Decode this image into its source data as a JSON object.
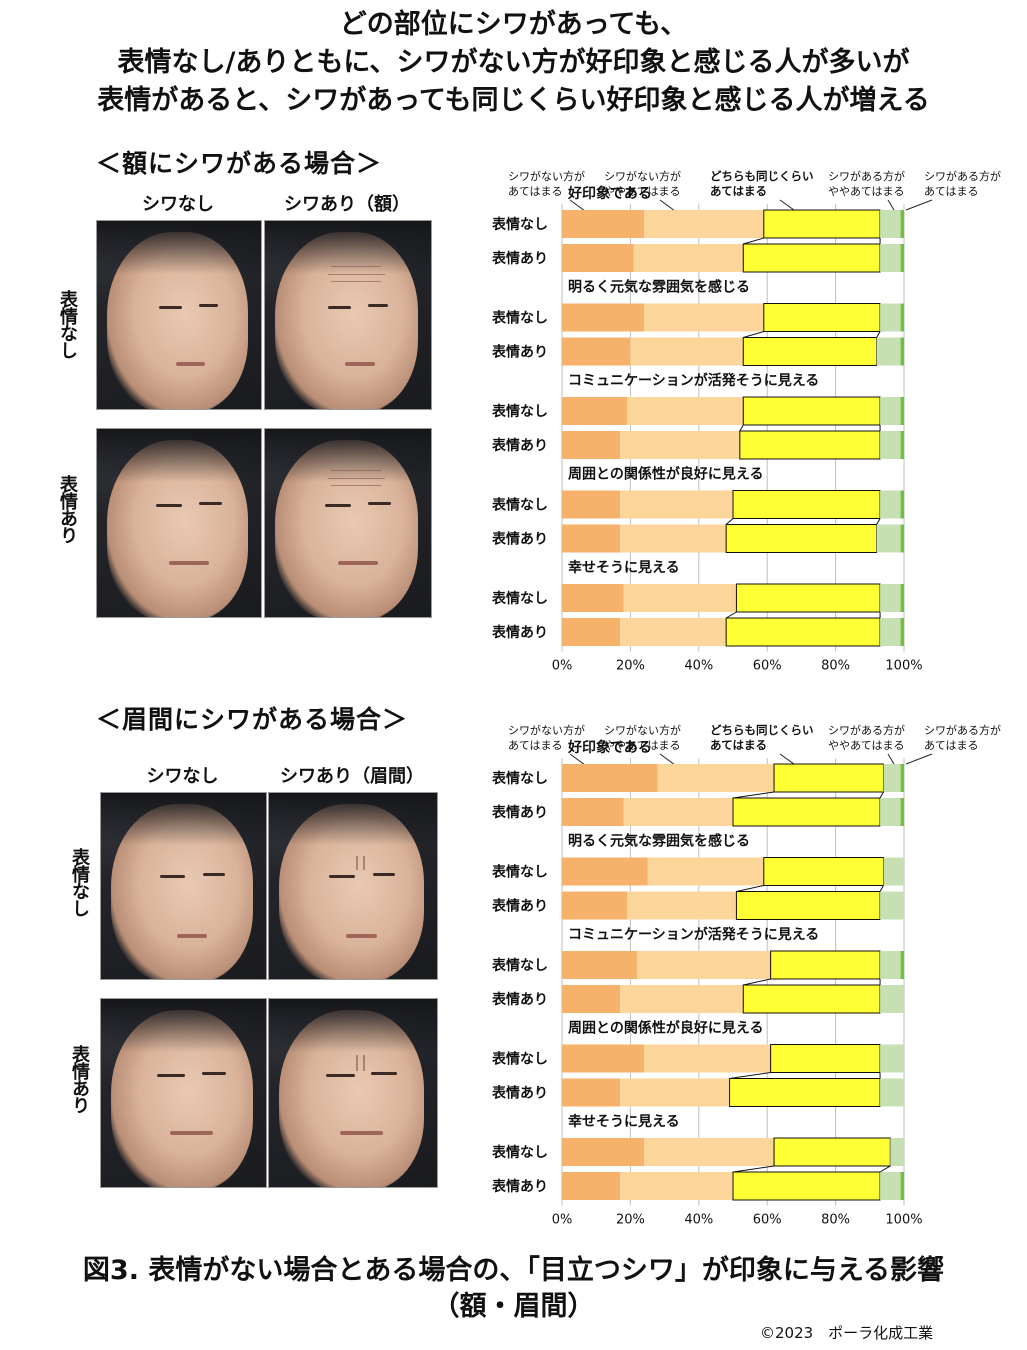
{
  "headline": [
    "どの部位にシワがあっても、",
    "表情なし/ありともに、シワがない方が好印象と感じる人が多いが",
    "表情があると、シワがあっても同じくらい好印象と感じる人が増える"
  ],
  "caption": {
    "line1": "図3. 表情がない場合とある場合の、「目立つシワ」が印象に与える影響",
    "line2": "（額・眉間）"
  },
  "copyright": "©2023　ポーラ化成工業",
  "colors": {
    "c1": "#f6b26b",
    "c2": "#fbd59a",
    "c3": "#ffff33",
    "c4": "#c6e0b4",
    "c5": "#70c040",
    "grid": "#bfbfbf"
  },
  "legend": {
    "c1": [
      "シワがない方が",
      "あてはまる"
    ],
    "c2": [
      "シワがない方が",
      "ややあてはまる"
    ],
    "c3": [
      "どちらも同じくらい",
      "あてはまる"
    ],
    "c4": [
      "シワがある方が",
      "ややあてはまる"
    ],
    "c5": [
      "シワがある方が",
      "あてはまる"
    ]
  },
  "sections": [
    {
      "title": "＜額にシワがある場合＞",
      "col_heads": [
        "シワなし",
        "シワあり（額）"
      ],
      "row_heads": [
        "表情なし",
        "表情あり"
      ],
      "photos": [
        "forehead-no-wrinkle-neutral-photo",
        "forehead-wrinkle-neutral-photo",
        "forehead-no-wrinkle-expression-photo",
        "forehead-wrinkle-expression-photo"
      ]
    },
    {
      "title": "＜眉間にシワがある場合＞",
      "col_heads": [
        "シワなし",
        "シワあり（眉間）"
      ],
      "row_heads": [
        "表情なし",
        "表情あり"
      ],
      "photos": [
        "glabella-no-wrinkle-neutral-photo",
        "glabella-wrinkle-neutral-photo",
        "glabella-no-wrinkle-expression-photo",
        "glabella-wrinkle-expression-photo"
      ]
    }
  ],
  "chart_data": [
    {
      "type": "bar",
      "orientation": "horizontal-stacked-100",
      "xlim": [
        0,
        100
      ],
      "xticks": [
        "0%",
        "20%",
        "40%",
        "60%",
        "80%",
        "100%"
      ],
      "grid": true,
      "series_names": [
        "シワがない方があてはまる",
        "シワがない方がややあてはまる",
        "どちらも同じくらいあてはまる",
        "シワがある方がややあてはまる",
        "シワがある方があてはまる"
      ],
      "groups": [
        {
          "label": "好印象である",
          "rows": [
            {
              "label": "表情なし",
              "values": [
                24,
                35,
                34,
                6,
                1
              ]
            },
            {
              "label": "表情あり",
              "values": [
                21,
                32,
                40,
                6,
                1
              ]
            }
          ]
        },
        {
          "label": "明るく元気な雰囲気を感じる",
          "rows": [
            {
              "label": "表情なし",
              "values": [
                24,
                35,
                34,
                6,
                1
              ]
            },
            {
              "label": "表情あり",
              "values": [
                20,
                33,
                39,
                7,
                1
              ]
            }
          ]
        },
        {
          "label": "コミュニケーションが活発そうに見える",
          "rows": [
            {
              "label": "表情なし",
              "values": [
                19,
                34,
                40,
                6,
                1
              ]
            },
            {
              "label": "表情あり",
              "values": [
                17,
                35,
                41,
                6,
                1
              ]
            }
          ]
        },
        {
          "label": "周囲との関係性が良好に見える",
          "rows": [
            {
              "label": "表情なし",
              "values": [
                17,
                33,
                43,
                6,
                1
              ]
            },
            {
              "label": "表情あり",
              "values": [
                17,
                31,
                44,
                7,
                1
              ]
            }
          ]
        },
        {
          "label": "幸せそうに見える",
          "rows": [
            {
              "label": "表情なし",
              "values": [
                18,
                33,
                42,
                6,
                1
              ]
            },
            {
              "label": "表情あり",
              "values": [
                17,
                31,
                45,
                6,
                1
              ]
            }
          ]
        }
      ]
    },
    {
      "type": "bar",
      "orientation": "horizontal-stacked-100",
      "xlim": [
        0,
        100
      ],
      "xticks": [
        "0%",
        "20%",
        "40%",
        "60%",
        "80%",
        "100%"
      ],
      "grid": true,
      "series_names": [
        "シワがない方があてはまる",
        "シワがない方がややあてはまる",
        "どちらも同じくらいあてはまる",
        "シワがある方がややあてはまる",
        "シワがある方があてはまる"
      ],
      "groups": [
        {
          "label": "好印象である",
          "rows": [
            {
              "label": "表情なし",
              "values": [
                28,
                34,
                32,
                5,
                1
              ]
            },
            {
              "label": "表情あり",
              "values": [
                18,
                32,
                43,
                6,
                1
              ]
            }
          ]
        },
        {
          "label": "明るく元気な雰囲気を感じる",
          "rows": [
            {
              "label": "表情なし",
              "values": [
                25,
                34,
                35,
                6,
                0
              ]
            },
            {
              "label": "表情あり",
              "values": [
                19,
                32,
                42,
                7,
                0
              ]
            }
          ]
        },
        {
          "label": "コミュニケーションが活発そうに見える",
          "rows": [
            {
              "label": "表情なし",
              "values": [
                22,
                39,
                32,
                6,
                1
              ]
            },
            {
              "label": "表情あり",
              "values": [
                17,
                36,
                40,
                7,
                0
              ]
            }
          ]
        },
        {
          "label": "周囲との関係性が良好に見える",
          "rows": [
            {
              "label": "表情なし",
              "values": [
                24,
                37,
                32,
                7,
                0
              ]
            },
            {
              "label": "表情あり",
              "values": [
                17,
                32,
                44,
                7,
                0
              ]
            }
          ]
        },
        {
          "label": "幸せそうに見える",
          "rows": [
            {
              "label": "表情なし",
              "values": [
                24,
                38,
                34,
                4,
                0
              ]
            },
            {
              "label": "表情あり",
              "values": [
                17,
                33,
                43,
                6,
                1
              ]
            }
          ]
        }
      ]
    }
  ]
}
